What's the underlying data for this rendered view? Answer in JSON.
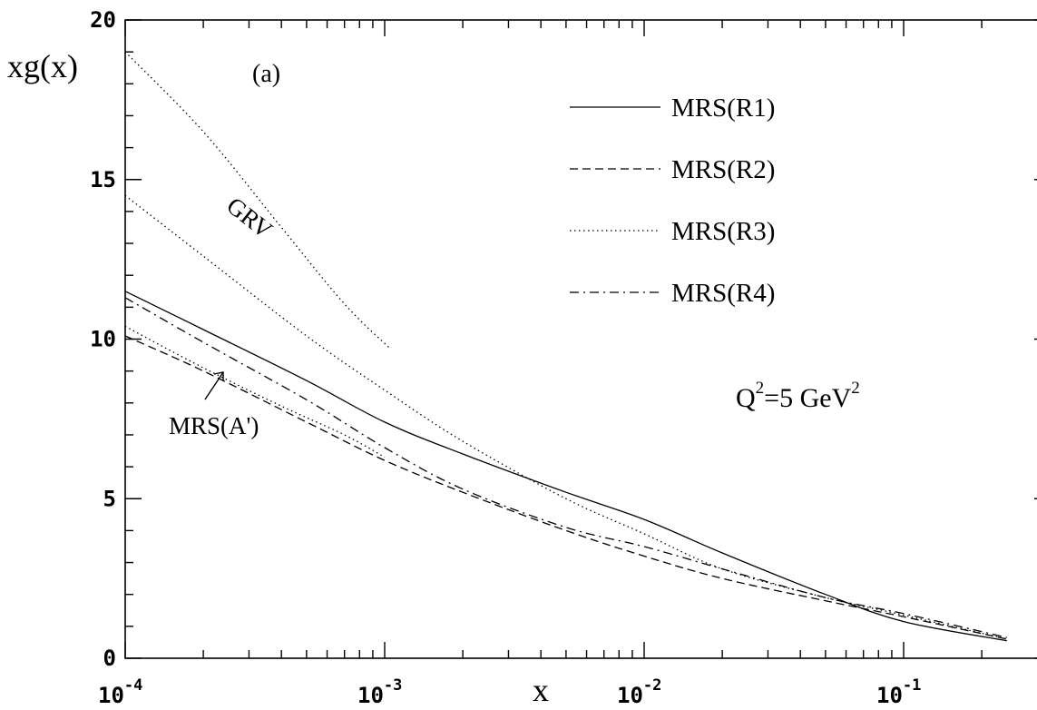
{
  "chart_data": {
    "type": "line",
    "panel_label": "(a)",
    "ylabel": "xg(x)",
    "xlabel": "x",
    "x_scale": "log",
    "xlim": [
      0.0001,
      0.25
    ],
    "ylim": [
      0,
      20
    ],
    "y_ticks": [
      0,
      5,
      10,
      15,
      20
    ],
    "x_ticks": [
      {
        "value": 0.0001,
        "base": "10",
        "exp": "-4"
      },
      {
        "value": 0.001,
        "base": "10",
        "exp": "-3"
      },
      {
        "value": 0.01,
        "base": "10",
        "exp": "-2"
      },
      {
        "value": 0.1,
        "base": "10",
        "exp": "-1"
      }
    ],
    "legend": [
      {
        "label": "MRS(R1)",
        "style": "solid"
      },
      {
        "label": "MRS(R2)",
        "style": "dashed"
      },
      {
        "label": "MRS(R3)",
        "style": "dotted"
      },
      {
        "label": "MRS(R4)",
        "style": "dashdot"
      }
    ],
    "note": {
      "text": "Q",
      "sup1": "2",
      "mid": "=5 GeV",
      "sup2": "2"
    },
    "annotations": [
      {
        "text": "GRV",
        "target": "GRV curve"
      },
      {
        "text": "MRS(A')",
        "target": "MRS(A') curve"
      }
    ],
    "series": [
      {
        "name": "MRS(R1)",
        "style": "solid",
        "x": [
          0.0001,
          0.0002,
          0.0005,
          0.001,
          0.002,
          0.005,
          0.01,
          0.02,
          0.05,
          0.1,
          0.25
        ],
        "y": [
          11.5,
          10.3,
          8.7,
          7.4,
          6.4,
          5.2,
          4.35,
          3.3,
          2.0,
          1.15,
          0.55
        ]
      },
      {
        "name": "MRS(R2)",
        "style": "dashed",
        "x": [
          0.0001,
          0.0002,
          0.0005,
          0.001,
          0.002,
          0.005,
          0.01,
          0.02,
          0.05,
          0.1,
          0.25
        ],
        "y": [
          10.1,
          9.0,
          7.4,
          6.2,
          5.2,
          4.0,
          3.2,
          2.5,
          1.8,
          1.3,
          0.6
        ]
      },
      {
        "name": "MRS(R3)",
        "style": "dotted",
        "x": [
          0.0001,
          0.0002,
          0.0005,
          0.001,
          0.002,
          0.005,
          0.01,
          0.02,
          0.05,
          0.1,
          0.25
        ],
        "y": [
          14.5,
          12.6,
          10.1,
          8.4,
          6.8,
          5.0,
          3.9,
          2.8,
          1.9,
          1.35,
          0.6
        ]
      },
      {
        "name": "MRS(R4)",
        "style": "dashdot",
        "x": [
          0.0001,
          0.0002,
          0.0005,
          0.001,
          0.002,
          0.005,
          0.01,
          0.02,
          0.05,
          0.1,
          0.25
        ],
        "y": [
          11.3,
          9.9,
          8.1,
          6.6,
          5.3,
          4.1,
          3.5,
          2.8,
          1.9,
          1.4,
          0.65
        ]
      },
      {
        "name": "GRV",
        "style": "dotted",
        "x": [
          0.0001,
          0.0002,
          0.0004,
          0.0007,
          0.00105
        ],
        "y": [
          19.0,
          16.5,
          13.5,
          11.1,
          9.7
        ]
      },
      {
        "name": "MRS(A')",
        "style": "dotted",
        "x": [
          0.0001,
          0.0002,
          0.0004,
          0.0007,
          0.001
        ],
        "y": [
          10.4,
          9.1,
          7.9,
          7.0,
          6.3
        ]
      }
    ]
  }
}
